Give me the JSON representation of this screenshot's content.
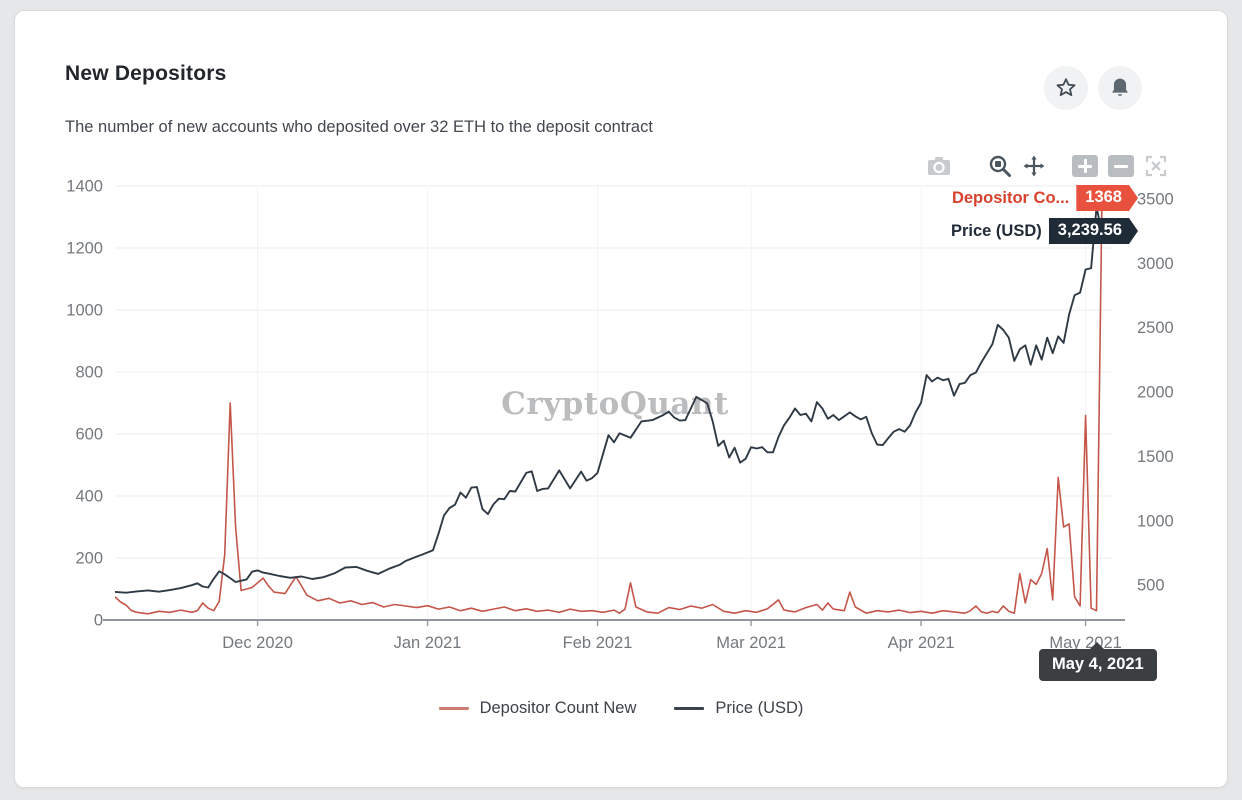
{
  "card": {
    "title": "New Depositors",
    "subtitle": "The number of new accounts who deposited over 32 ETH to the deposit contract"
  },
  "header_actions": {
    "favorite": "star-icon",
    "alerts": "bell-icon"
  },
  "toolbar": {
    "icons": [
      "camera",
      "zoom-select",
      "pan",
      "zoom-in",
      "zoom-out",
      "reset-zoom"
    ]
  },
  "watermark": "CryptoQuant",
  "tooltip": {
    "x_label": "May 4, 2021",
    "series": [
      {
        "label": "Depositor Co...",
        "value": "1368",
        "color": "#e8513e"
      },
      {
        "label": "Price (USD)",
        "value": "3,239.56",
        "color": "#202b38"
      }
    ]
  },
  "legend": [
    {
      "label": "Depositor Count New",
      "color": "#cd7e71"
    },
    {
      "label": "Price (USD)",
      "color": "#3a434d"
    }
  ],
  "chart_data": {
    "type": "line",
    "title": "New Depositors",
    "x_unit": "day index (day 0 = Nov 5, 2020)",
    "x_domain": [
      0,
      182
    ],
    "x_tick_days": [
      26,
      57,
      88,
      116,
      147,
      177
    ],
    "x_tick_labels": [
      "Dec 2020",
      "Jan 2021",
      "Feb 2021",
      "Mar 2021",
      "Apr 2021",
      "May 2021"
    ],
    "grid": true,
    "legend_position": "bottom",
    "left_axis": {
      "label": "Depositor Count New",
      "range": [
        0,
        1400
      ],
      "ticks": [
        0,
        200,
        400,
        600,
        800,
        1000,
        1200,
        1400
      ]
    },
    "right_axis": {
      "label": "Price (USD)",
      "range": [
        230,
        3600
      ],
      "ticks": [
        500,
        1000,
        1500,
        2000,
        2500,
        3000,
        3500
      ]
    },
    "highlight": {
      "date": "May 4, 2021",
      "depositor_count_new": 1368,
      "price_usd": 3239.56
    },
    "series": [
      {
        "name": "Depositor Count New",
        "axis": "left",
        "color": "#c4564a",
        "width": 1.6,
        "points": [
          [
            0,
            75
          ],
          [
            1,
            58
          ],
          [
            2,
            48
          ],
          [
            3,
            30
          ],
          [
            4,
            25
          ],
          [
            6,
            20
          ],
          [
            8,
            28
          ],
          [
            10,
            25
          ],
          [
            12,
            32
          ],
          [
            14,
            25
          ],
          [
            15,
            30
          ],
          [
            16,
            55
          ],
          [
            17,
            38
          ],
          [
            18,
            30
          ],
          [
            19,
            60
          ],
          [
            20,
            210
          ],
          [
            21,
            700
          ],
          [
            22,
            300
          ],
          [
            23,
            95
          ],
          [
            25,
            105
          ],
          [
            27,
            135
          ],
          [
            28,
            110
          ],
          [
            29,
            90
          ],
          [
            31,
            85
          ],
          [
            33,
            140
          ],
          [
            35,
            80
          ],
          [
            37,
            62
          ],
          [
            39,
            70
          ],
          [
            41,
            55
          ],
          [
            43,
            62
          ],
          [
            45,
            50
          ],
          [
            47,
            56
          ],
          [
            49,
            42
          ],
          [
            51,
            50
          ],
          [
            53,
            45
          ],
          [
            55,
            40
          ],
          [
            57,
            46
          ],
          [
            59,
            35
          ],
          [
            61,
            42
          ],
          [
            63,
            30
          ],
          [
            65,
            38
          ],
          [
            67,
            28
          ],
          [
            69,
            35
          ],
          [
            71,
            42
          ],
          [
            73,
            30
          ],
          [
            75,
            36
          ],
          [
            77,
            28
          ],
          [
            79,
            32
          ],
          [
            81,
            25
          ],
          [
            83,
            35
          ],
          [
            85,
            28
          ],
          [
            87,
            30
          ],
          [
            89,
            25
          ],
          [
            91,
            32
          ],
          [
            92,
            22
          ],
          [
            93,
            35
          ],
          [
            94,
            120
          ],
          [
            95,
            42
          ],
          [
            97,
            26
          ],
          [
            99,
            22
          ],
          [
            101,
            40
          ],
          [
            103,
            34
          ],
          [
            105,
            45
          ],
          [
            107,
            38
          ],
          [
            109,
            50
          ],
          [
            111,
            28
          ],
          [
            113,
            22
          ],
          [
            115,
            30
          ],
          [
            117,
            25
          ],
          [
            119,
            36
          ],
          [
            121,
            65
          ],
          [
            122,
            32
          ],
          [
            124,
            26
          ],
          [
            126,
            40
          ],
          [
            128,
            50
          ],
          [
            129,
            32
          ],
          [
            130,
            55
          ],
          [
            131,
            35
          ],
          [
            133,
            30
          ],
          [
            134,
            90
          ],
          [
            135,
            42
          ],
          [
            137,
            22
          ],
          [
            139,
            30
          ],
          [
            141,
            26
          ],
          [
            143,
            32
          ],
          [
            145,
            24
          ],
          [
            147,
            28
          ],
          [
            149,
            22
          ],
          [
            151,
            30
          ],
          [
            153,
            26
          ],
          [
            155,
            22
          ],
          [
            156,
            30
          ],
          [
            157,
            45
          ],
          [
            158,
            26
          ],
          [
            159,
            22
          ],
          [
            160,
            28
          ],
          [
            161,
            24
          ],
          [
            162,
            45
          ],
          [
            163,
            28
          ],
          [
            164,
            22
          ],
          [
            165,
            150
          ],
          [
            166,
            55
          ],
          [
            167,
            130
          ],
          [
            168,
            115
          ],
          [
            169,
            150
          ],
          [
            170,
            230
          ],
          [
            171,
            65
          ],
          [
            172,
            460
          ],
          [
            173,
            300
          ],
          [
            174,
            310
          ],
          [
            175,
            75
          ],
          [
            176,
            45
          ],
          [
            177,
            660
          ],
          [
            178,
            38
          ],
          [
            179,
            30
          ],
          [
            180,
            1368
          ]
        ]
      },
      {
        "name": "Price (USD)",
        "axis": "right",
        "color": "#2f3a45",
        "width": 1.9,
        "points": [
          [
            0,
            448
          ],
          [
            2,
            442
          ],
          [
            4,
            452
          ],
          [
            6,
            460
          ],
          [
            8,
            450
          ],
          [
            10,
            462
          ],
          [
            12,
            478
          ],
          [
            14,
            500
          ],
          [
            15,
            515
          ],
          [
            16,
            490
          ],
          [
            17,
            482
          ],
          [
            18,
            550
          ],
          [
            19,
            608
          ],
          [
            20,
            585
          ],
          [
            21,
            555
          ],
          [
            22,
            525
          ],
          [
            24,
            545
          ],
          [
            25,
            605
          ],
          [
            26,
            615
          ],
          [
            27,
            598
          ],
          [
            28,
            590
          ],
          [
            30,
            572
          ],
          [
            32,
            558
          ],
          [
            34,
            568
          ],
          [
            36,
            548
          ],
          [
            38,
            562
          ],
          [
            40,
            592
          ],
          [
            42,
            638
          ],
          [
            44,
            642
          ],
          [
            46,
            612
          ],
          [
            48,
            588
          ],
          [
            50,
            628
          ],
          [
            52,
            660
          ],
          [
            53,
            688
          ],
          [
            55,
            722
          ],
          [
            56,
            738
          ],
          [
            58,
            772
          ],
          [
            59,
            900
          ],
          [
            60,
            1042
          ],
          [
            61,
            1100
          ],
          [
            62,
            1125
          ],
          [
            63,
            1220
          ],
          [
            64,
            1180
          ],
          [
            65,
            1258
          ],
          [
            66,
            1262
          ],
          [
            67,
            1092
          ],
          [
            68,
            1052
          ],
          [
            69,
            1128
          ],
          [
            70,
            1172
          ],
          [
            71,
            1168
          ],
          [
            72,
            1232
          ],
          [
            73,
            1228
          ],
          [
            75,
            1372
          ],
          [
            76,
            1385
          ],
          [
            77,
            1232
          ],
          [
            78,
            1248
          ],
          [
            79,
            1252
          ],
          [
            81,
            1392
          ],
          [
            83,
            1252
          ],
          [
            85,
            1382
          ],
          [
            86,
            1312
          ],
          [
            87,
            1332
          ],
          [
            88,
            1372
          ],
          [
            90,
            1665
          ],
          [
            91,
            1610
          ],
          [
            92,
            1680
          ],
          [
            94,
            1645
          ],
          [
            96,
            1772
          ],
          [
            98,
            1782
          ],
          [
            100,
            1822
          ],
          [
            101,
            1848
          ],
          [
            102,
            1802
          ],
          [
            103,
            1778
          ],
          [
            104,
            1782
          ],
          [
            106,
            1962
          ],
          [
            107,
            1938
          ],
          [
            108,
            1912
          ],
          [
            109,
            1772
          ],
          [
            110,
            1582
          ],
          [
            111,
            1622
          ],
          [
            112,
            1492
          ],
          [
            113,
            1568
          ],
          [
            114,
            1452
          ],
          [
            115,
            1482
          ],
          [
            116,
            1572
          ],
          [
            117,
            1562
          ],
          [
            118,
            1572
          ],
          [
            119,
            1532
          ],
          [
            120,
            1532
          ],
          [
            121,
            1652
          ],
          [
            122,
            1742
          ],
          [
            123,
            1802
          ],
          [
            124,
            1872
          ],
          [
            125,
            1822
          ],
          [
            126,
            1832
          ],
          [
            127,
            1772
          ],
          [
            128,
            1922
          ],
          [
            129,
            1872
          ],
          [
            130,
            1792
          ],
          [
            131,
            1822
          ],
          [
            132,
            1782
          ],
          [
            133,
            1812
          ],
          [
            134,
            1842
          ],
          [
            135,
            1812
          ],
          [
            136,
            1788
          ],
          [
            137,
            1808
          ],
          [
            138,
            1682
          ],
          [
            139,
            1592
          ],
          [
            140,
            1588
          ],
          [
            141,
            1642
          ],
          [
            142,
            1692
          ],
          [
            143,
            1712
          ],
          [
            144,
            1692
          ],
          [
            145,
            1742
          ],
          [
            146,
            1842
          ],
          [
            147,
            1918
          ],
          [
            148,
            2132
          ],
          [
            149,
            2082
          ],
          [
            150,
            2112
          ],
          [
            151,
            2092
          ],
          [
            152,
            2102
          ],
          [
            153,
            1972
          ],
          [
            154,
            2062
          ],
          [
            155,
            2072
          ],
          [
            156,
            2132
          ],
          [
            157,
            2152
          ],
          [
            158,
            2232
          ],
          [
            159,
            2302
          ],
          [
            160,
            2372
          ],
          [
            161,
            2522
          ],
          [
            162,
            2482
          ],
          [
            163,
            2422
          ],
          [
            164,
            2242
          ],
          [
            165,
            2332
          ],
          [
            166,
            2362
          ],
          [
            167,
            2212
          ],
          [
            168,
            2362
          ],
          [
            169,
            2252
          ],
          [
            170,
            2422
          ],
          [
            171,
            2302
          ],
          [
            172,
            2432
          ],
          [
            173,
            2382
          ],
          [
            174,
            2602
          ],
          [
            175,
            2752
          ],
          [
            176,
            2772
          ],
          [
            177,
            2952
          ],
          [
            178,
            2962
          ],
          [
            179,
            3432
          ],
          [
            180,
            3242
          ]
        ]
      }
    ]
  }
}
